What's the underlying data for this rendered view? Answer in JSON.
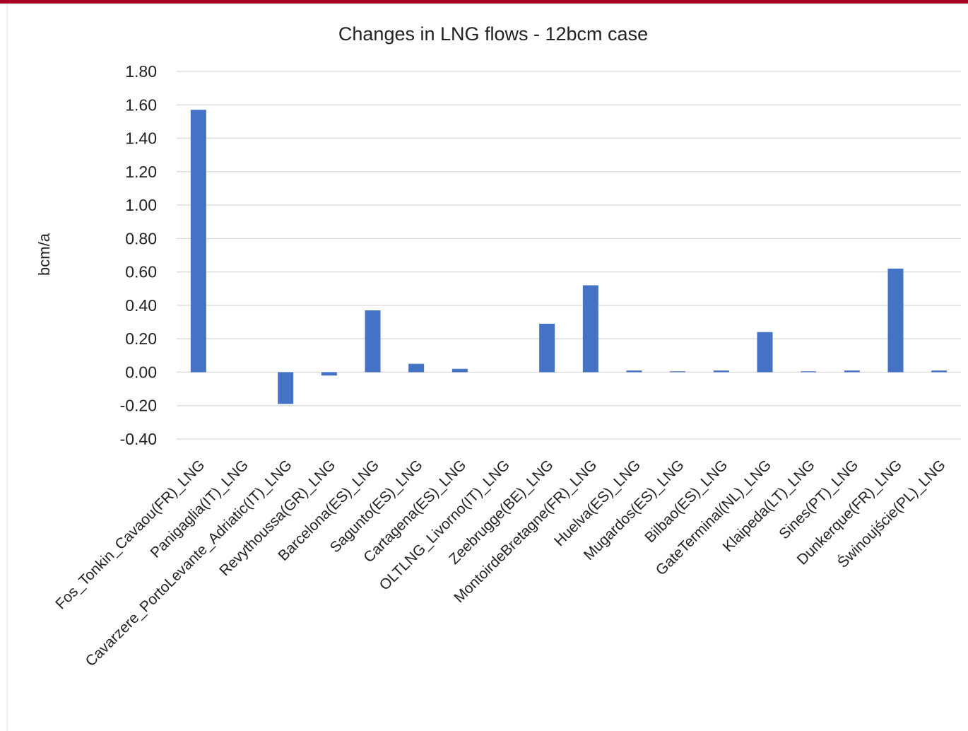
{
  "chart_data": {
    "type": "bar",
    "title": "Changes in LNG flows - 12bcm case",
    "y_label": "bcm/a",
    "categories": [
      "Fos_Tonkin_Cavaou(FR)_LNG",
      "Panigaglia(IT)_LNG",
      "Cavarzere_PortoLevante_Adriatic(IT)_LNG",
      "Revythoussa(GR)_LNG",
      "Barcelona(ES)_LNG",
      "Sagunto(ES)_LNG",
      "Cartagena(ES)_LNG",
      "OLTLNG_Livorno(IT)_LNG",
      "Zeebrugge(BE)_LNG",
      "MontoirdeBretagne(FR)_LNG",
      "Huelva(ES)_LNG",
      "Mugardos(ES)_LNG",
      "Bilbao(ES)_LNG",
      "GateTerminal(NL)_LNG",
      "Klaipeda(LT)_LNG",
      "Sines(PT)_LNG",
      "Dunkerque(FR)_LNG",
      "Świnoujście(PL)_LNG"
    ],
    "values": [
      1.57,
      0,
      -0.19,
      -0.02,
      0.37,
      0.05,
      0.02,
      0,
      0.29,
      0.52,
      0.01,
      0.005,
      0.01,
      0.24,
      0.005,
      0.01,
      0.62,
      0.01
    ],
    "color": "#4472c4",
    "ylim": [
      -0.4,
      1.8
    ],
    "yticks": [
      {
        "value": 1.8,
        "label": "1.80"
      },
      {
        "value": 1.6,
        "label": "1.60"
      },
      {
        "value": 1.4,
        "label": "1.40"
      },
      {
        "value": 1.2,
        "label": "1.20"
      },
      {
        "value": 1,
        "label": "1.00"
      },
      {
        "value": 0.8,
        "label": "0.80"
      },
      {
        "value": 0.6,
        "label": "0.60"
      },
      {
        "value": 0.4,
        "label": "0.40"
      },
      {
        "value": 0.2,
        "label": "0.20"
      },
      {
        "value": 0,
        "label": "0.00"
      },
      {
        "value": -0.2,
        "label": "-0.20"
      },
      {
        "value": -0.4,
        "label": "-0.40"
      }
    ],
    "grid": true
  }
}
